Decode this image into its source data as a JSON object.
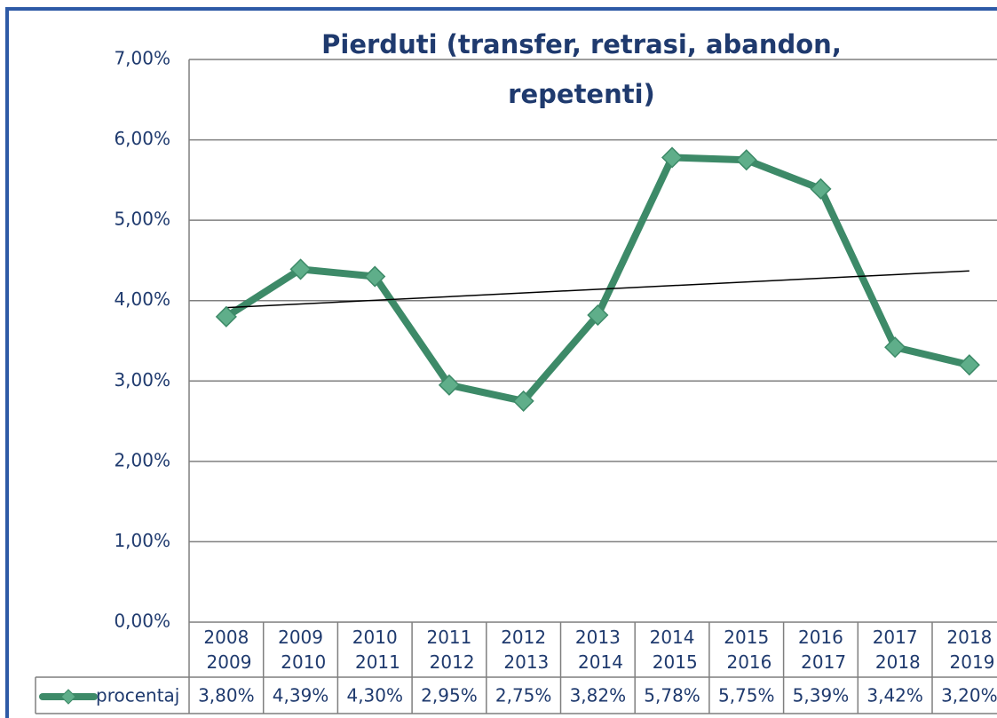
{
  "chart_data": {
    "type": "line",
    "title": [
      "Pierduti (transfer, retrasi, abandon,",
      "repetenti)"
    ],
    "categories": [
      "2008 2009",
      "2009 2010",
      "2010 2011",
      "2011 2012",
      "2012 2013",
      "2013 2014",
      "2014 2015",
      "2015 2016",
      "2016 2017",
      "2017 2018",
      "2018 2019"
    ],
    "series": [
      {
        "name": "procentaj",
        "color": "#3d8a68",
        "marker_color": "#5fae8a",
        "values": [
          3.8,
          4.39,
          4.3,
          2.95,
          2.75,
          3.82,
          5.78,
          5.75,
          5.39,
          3.42,
          3.2
        ],
        "value_labels": [
          "3,80%",
          "4,39%",
          "4,30%",
          "2,95%",
          "2,75%",
          "3,82%",
          "5,78%",
          "5,75%",
          "5,39%",
          "3,42%",
          "3,20%"
        ]
      }
    ],
    "ylim": [
      0,
      7
    ],
    "yticks": [
      {
        "value": 0,
        "label": "0,00%"
      },
      {
        "value": 1,
        "label": "1,00%"
      },
      {
        "value": 2,
        "label": "2,00%"
      },
      {
        "value": 3,
        "label": "3,00%"
      },
      {
        "value": 4,
        "label": "4,00%"
      },
      {
        "value": 5,
        "label": "5,00%"
      },
      {
        "value": 6,
        "label": "6,00%"
      },
      {
        "value": 7,
        "label": "7,00%"
      }
    ],
    "grid": true,
    "trendline": true,
    "data_table": true
  }
}
